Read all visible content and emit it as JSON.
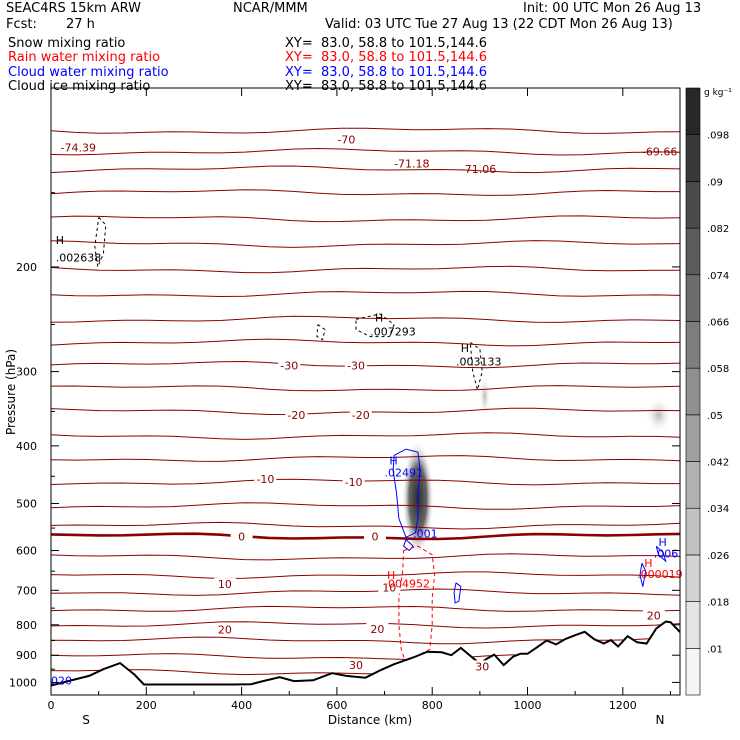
{
  "header": {
    "model": "SEAC4RS 15km ARW",
    "center": "NCAR/MMM",
    "init": "Init: 00 UTC Mon 26 Aug 13",
    "fcst_label": "Fcst:",
    "fcst_value": "27 h",
    "valid": "Valid: 03 UTC Tue 27 Aug 13 (22 CDT Mon 26 Aug 13)",
    "fields": [
      {
        "name": "Snow mixing ratio",
        "xy": "XY=  83.0, 58.8 to 101.5,144.6",
        "color": "#000000"
      },
      {
        "name": "Rain water mixing ratio",
        "xy": "XY=  83.0, 58.8 to 101.5,144.6",
        "color": "#ff0000"
      },
      {
        "name": "Cloud water mixing ratio",
        "xy": "XY=  83.0, 58.8 to 101.5,144.6",
        "color": "#0000ff"
      },
      {
        "name": "Cloud ice mixing ratio",
        "xy": "XY=  83.0, 58.8 to 101.5,144.6",
        "color": "#000000"
      }
    ]
  },
  "colorbar": {
    "unit": "g kg⁻¹",
    "levels": [
      ".01",
      ".018",
      ".026",
      ".034",
      ".042",
      ".05",
      ".058",
      ".066",
      ".074",
      ".082",
      ".09",
      ".098"
    ]
  },
  "chart_data": {
    "type": "cross-section",
    "xlabel": "Distance (km)",
    "ylabel": "Pressure (hPa)",
    "xlim": [
      0,
      1320
    ],
    "ylim": [
      1050,
      100
    ],
    "yscale": "log",
    "x_ticks": [
      0,
      200,
      400,
      600,
      800,
      1000,
      1200
    ],
    "y_ticks": [
      200,
      300,
      400,
      500,
      600,
      700,
      800,
      900,
      1000
    ],
    "end_labels": {
      "left": "S",
      "right": "N"
    },
    "temperature_contours": [
      {
        "label": "-70",
        "x": 620,
        "p": 122,
        "color": "#8b0000"
      },
      {
        "label": "-30",
        "x": 500,
        "p": 293,
        "color": "#8b0000"
      },
      {
        "label": "-30",
        "x": 640,
        "p": 293,
        "color": "#8b0000"
      },
      {
        "label": "-20",
        "x": 515,
        "p": 355,
        "color": "#8b0000"
      },
      {
        "label": "-20",
        "x": 650,
        "p": 355,
        "color": "#8b0000"
      },
      {
        "label": "-10",
        "x": 450,
        "p": 455,
        "color": "#8b0000"
      },
      {
        "label": "-10",
        "x": 635,
        "p": 460,
        "color": "#8b0000"
      },
      {
        "label": "0",
        "x": 400,
        "p": 568,
        "color": "#8b0000"
      },
      {
        "label": "0",
        "x": 680,
        "p": 568,
        "color": "#8b0000"
      },
      {
        "label": "10",
        "x": 365,
        "p": 683,
        "color": "#8b0000"
      },
      {
        "label": "10",
        "x": 710,
        "p": 693,
        "color": "#8b0000"
      },
      {
        "label": "20",
        "x": 365,
        "p": 815,
        "color": "#8b0000"
      },
      {
        "label": "20",
        "x": 685,
        "p": 813,
        "color": "#8b0000"
      },
      {
        "label": "20",
        "x": 1265,
        "p": 771,
        "color": "#8b0000"
      },
      {
        "label": "30",
        "x": 640,
        "p": 935,
        "color": "#8b0000"
      },
      {
        "label": "30",
        "x": 905,
        "p": 940,
        "color": "#8b0000"
      }
    ],
    "extrema_labels": [
      {
        "label": "-74.39",
        "x": 20,
        "p": 128,
        "color": "#8b0000"
      },
      {
        "label": "-71.18",
        "x": 720,
        "p": 136,
        "color": "#8b0000"
      },
      {
        "label": "-71.06",
        "x": 860,
        "p": 139,
        "color": "#8b0000"
      },
      {
        "label": "-69.66",
        "x": 1240,
        "p": 130,
        "color": "#8b0000"
      },
      {
        "label": "H",
        "x": 10,
        "p": 183,
        "color": "#000000"
      },
      {
        "label": ".002638",
        "x": 10,
        "p": 196,
        "color": "#000000"
      },
      {
        "label": "H",
        "x": 680,
        "p": 247,
        "color": "#000000"
      },
      {
        "label": ".007293",
        "x": 670,
        "p": 261,
        "color": "#000000"
      },
      {
        "label": "H",
        "x": 860,
        "p": 278,
        "color": "#000000"
      },
      {
        "label": ".003133",
        "x": 850,
        "p": 293,
        "color": "#000000"
      },
      {
        "label": "H",
        "x": 710,
        "p": 430,
        "color": "#0000ff"
      },
      {
        "label": ".02491",
        "x": 700,
        "p": 450,
        "color": "#0000ff"
      },
      {
        "label": ".001",
        "x": 760,
        "p": 570,
        "color": "#0000ff"
      },
      {
        "label": "H",
        "x": 1275,
        "p": 590,
        "color": "#0000ff"
      },
      {
        "label": ".006",
        "x": 1265,
        "p": 617,
        "color": "#0000ff"
      },
      {
        "label": "H",
        "x": 1245,
        "p": 640,
        "color": "#ff0000"
      },
      {
        "label": ".000019",
        "x": 1230,
        "p": 667,
        "color": "#ff0000"
      },
      {
        "label": "H",
        "x": 705,
        "p": 670,
        "color": "#ff0000"
      },
      {
        "label": ".004952",
        "x": 700,
        "p": 692,
        "color": "#ff0000"
      },
      {
        "label": "020",
        "x": 0,
        "p": 1008,
        "color": "#0000ff"
      }
    ],
    "terrain": {
      "x": [
        0,
        40,
        80,
        110,
        145,
        175,
        195,
        260,
        330,
        380,
        420,
        445,
        480,
        510,
        550,
        590,
        620,
        660,
        690,
        720,
        760,
        790,
        820,
        840,
        860,
        880,
        900,
        915,
        930,
        950,
        970,
        985,
        1000,
        1020,
        1040,
        1060,
        1080,
        1100,
        1120,
        1140,
        1160,
        1175,
        1190,
        1210,
        1230,
        1250,
        1270,
        1290,
        1300,
        1320
      ],
      "p": [
        1012,
        993,
        975,
        950,
        928,
        970,
        1008,
        1008,
        1008,
        1008,
        1007,
        995,
        980,
        995,
        992,
        965,
        975,
        982,
        955,
        932,
        908,
        888,
        890,
        900,
        875,
        902,
        930,
        912,
        898,
        935,
        905,
        895,
        895,
        873,
        850,
        863,
        845,
        833,
        822,
        846,
        860,
        849,
        870,
        836,
        856,
        860,
        812,
        790,
        792,
        823
      ]
    }
  }
}
